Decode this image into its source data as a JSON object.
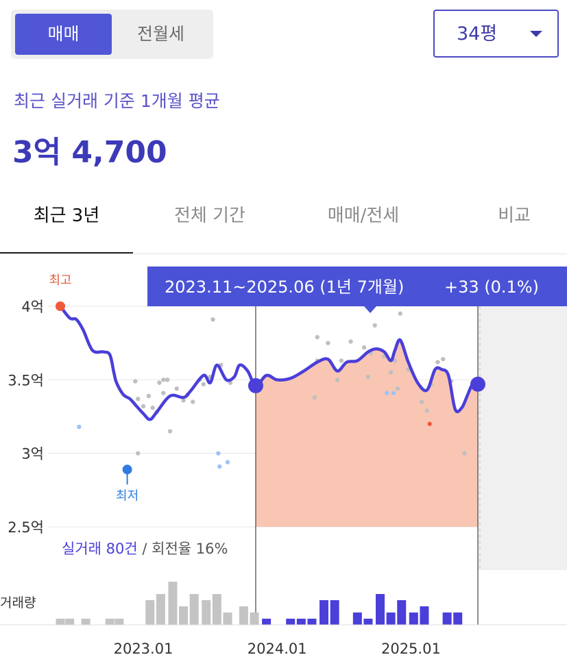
{
  "trade_toggle": {
    "sale_label": "매매",
    "rent_label": "전월세",
    "selected": "매매"
  },
  "area_select": {
    "value": "34평"
  },
  "summary": {
    "label": "최근 실거래 기준 1개월 평균",
    "price": "3억 4,700"
  },
  "tabs": [
    {
      "label": "최근 3년",
      "active": true
    },
    {
      "label": "전체 기간",
      "active": false
    },
    {
      "label": "매매/전세",
      "active": false
    },
    {
      "label": "비교",
      "active": false
    }
  ],
  "colors": {
    "accent": "#4a44d6",
    "range_fill": "#f9c6b4",
    "high_marker": "#f05a3a",
    "low_marker": "#2f7de0",
    "volume_gray": "#c4c4c4",
    "volume_blue": "#4a3fd9"
  },
  "chart_data": {
    "type": "line",
    "ylabels": [
      "4억",
      "3.5억",
      "3억",
      "2.5억"
    ],
    "y_ticks": [
      4.0,
      3.5,
      3.0,
      2.5
    ],
    "ylim": [
      2.5,
      4.0
    ],
    "xlabels": [
      "2023.01",
      "2024.01",
      "2025.01"
    ],
    "x_ticks": [
      2023.0,
      2024.0,
      2025.0
    ],
    "xlim": [
      2022.3,
      2025.92
    ],
    "high_label": "최고",
    "low_label": "최저",
    "high_point": {
      "x": 2022.38,
      "y": 4.0
    },
    "low_point": {
      "x": 2022.88,
      "y": 2.89
    },
    "range": {
      "label": "2023.11~2025.06 (1년 7개월)",
      "change": "+33 (0.1%)",
      "start": 2023.84,
      "end": 2025.5,
      "start_value": 3.46,
      "end_value": 3.47
    },
    "trade_stats": {
      "count_text": "실거래 80건",
      "separator": " / ",
      "turnover_text": "회전율 16%"
    },
    "volume_label": "거래량",
    "series": [
      {
        "x": [
          2022.38,
          2022.45,
          2022.5,
          2022.55,
          2022.62,
          2022.7,
          2022.75,
          2022.78,
          2022.8,
          2022.85,
          2022.9,
          2022.95,
          2023.0,
          2023.05,
          2023.1,
          2023.2,
          2023.3,
          2023.35,
          2023.45,
          2023.5,
          2023.55,
          2023.62,
          2023.68,
          2023.72,
          2023.78,
          2023.84,
          2023.92,
          2024.0,
          2024.1,
          2024.2,
          2024.3,
          2024.38,
          2024.45,
          2024.52,
          2024.6,
          2024.68,
          2024.74,
          2024.8,
          2024.85,
          2024.88,
          2024.92,
          2024.98,
          2025.05,
          2025.12,
          2025.18,
          2025.23,
          2025.28,
          2025.33,
          2025.38,
          2025.42,
          2025.46,
          2025.5
        ],
        "y": [
          4.0,
          3.92,
          3.91,
          3.84,
          3.7,
          3.69,
          3.67,
          3.55,
          3.48,
          3.4,
          3.37,
          3.32,
          3.27,
          3.23,
          3.28,
          3.39,
          3.38,
          3.42,
          3.53,
          3.48,
          3.6,
          3.5,
          3.52,
          3.6,
          3.56,
          3.46,
          3.53,
          3.5,
          3.51,
          3.56,
          3.62,
          3.64,
          3.56,
          3.62,
          3.63,
          3.69,
          3.71,
          3.69,
          3.63,
          3.7,
          3.77,
          3.62,
          3.48,
          3.43,
          3.57,
          3.57,
          3.53,
          3.3,
          3.31,
          3.39,
          3.47,
          3.47
        ]
      }
    ],
    "scatter": {
      "gray": [
        [
          2022.94,
          3.49
        ],
        [
          2022.96,
          3.37
        ],
        [
          2023.0,
          3.32
        ],
        [
          2023.04,
          3.39
        ],
        [
          2023.07,
          3.31
        ],
        [
          2023.1,
          3.28
        ],
        [
          2023.12,
          3.48
        ],
        [
          2023.15,
          3.41
        ],
        [
          2023.18,
          3.5
        ],
        [
          2023.2,
          3.15
        ],
        [
          2023.25,
          3.44
        ],
        [
          2023.3,
          3.36
        ],
        [
          2023.33,
          3.4
        ],
        [
          2023.37,
          3.35
        ],
        [
          2023.42,
          3.5
        ],
        [
          2023.45,
          3.47
        ],
        [
          2023.5,
          3.52
        ],
        [
          2023.52,
          3.91
        ],
        [
          2023.58,
          3.6
        ],
        [
          2023.65,
          3.48
        ],
        [
          2022.96,
          3.0
        ],
        [
          2023.15,
          3.5
        ],
        [
          2024.28,
          3.38
        ],
        [
          2024.3,
          3.63
        ],
        [
          2024.3,
          3.79
        ],
        [
          2024.38,
          3.75
        ],
        [
          2024.45,
          3.5
        ],
        [
          2024.48,
          3.63
        ],
        [
          2024.55,
          3.76
        ],
        [
          2024.65,
          3.72
        ],
        [
          2024.68,
          3.52
        ],
        [
          2024.7,
          3.68
        ],
        [
          2024.73,
          3.87
        ],
        [
          2024.8,
          3.66
        ],
        [
          2024.85,
          3.55
        ],
        [
          2024.88,
          3.63
        ],
        [
          2024.9,
          3.44
        ],
        [
          2024.92,
          3.95
        ],
        [
          2024.98,
          3.57
        ],
        [
          2025.08,
          3.35
        ],
        [
          2025.12,
          3.29
        ],
        [
          2025.15,
          3.47
        ],
        [
          2025.2,
          3.62
        ],
        [
          2025.24,
          3.64
        ],
        [
          2025.3,
          3.49
        ],
        [
          2025.4,
          3.0
        ]
      ],
      "blue": [
        [
          2022.52,
          3.18
        ],
        [
          2023.56,
          3.0
        ],
        [
          2023.57,
          2.91
        ],
        [
          2023.63,
          2.94
        ],
        [
          2024.82,
          3.41
        ],
        [
          2024.87,
          3.41
        ]
      ],
      "red": [
        [
          2025.14,
          3.2
        ]
      ]
    },
    "volume": [
      {
        "x": 2022.38,
        "v": 1
      },
      {
        "x": 2022.45,
        "v": 1
      },
      {
        "x": 2022.57,
        "v": 1
      },
      {
        "x": 2022.75,
        "v": 1
      },
      {
        "x": 2022.82,
        "v": 1
      },
      {
        "x": 2023.05,
        "v": 4
      },
      {
        "x": 2023.13,
        "v": 5
      },
      {
        "x": 2023.22,
        "v": 7
      },
      {
        "x": 2023.3,
        "v": 3
      },
      {
        "x": 2023.38,
        "v": 5
      },
      {
        "x": 2023.47,
        "v": 4
      },
      {
        "x": 2023.55,
        "v": 5
      },
      {
        "x": 2023.63,
        "v": 2
      },
      {
        "x": 2023.75,
        "v": 3
      },
      {
        "x": 2023.83,
        "v": 2
      },
      {
        "x": 2023.92,
        "v": 1
      },
      {
        "x": 2024.1,
        "v": 1
      },
      {
        "x": 2024.18,
        "v": 1
      },
      {
        "x": 2024.26,
        "v": 1
      },
      {
        "x": 2024.35,
        "v": 4
      },
      {
        "x": 2024.43,
        "v": 4
      },
      {
        "x": 2024.6,
        "v": 2
      },
      {
        "x": 2024.68,
        "v": 1
      },
      {
        "x": 2024.77,
        "v": 5
      },
      {
        "x": 2024.85,
        "v": 2
      },
      {
        "x": 2024.93,
        "v": 4
      },
      {
        "x": 2025.02,
        "v": 2
      },
      {
        "x": 2025.1,
        "v": 3
      },
      {
        "x": 2025.27,
        "v": 2
      },
      {
        "x": 2025.35,
        "v": 2
      }
    ]
  }
}
